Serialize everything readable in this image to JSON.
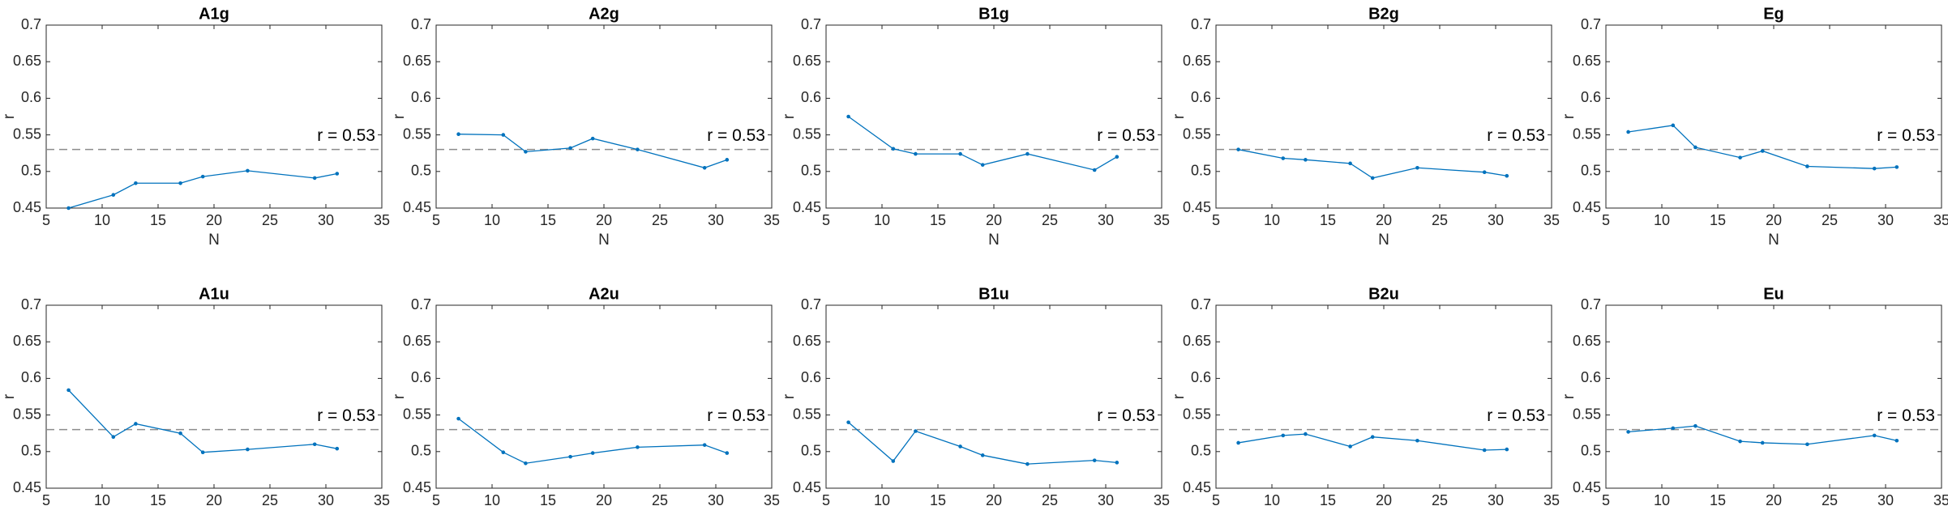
{
  "chart_data": [
    {
      "type": "line",
      "title": "A1g",
      "xlabel": "N",
      "ylabel": "r",
      "x": [
        7,
        11,
        13,
        17,
        19,
        23,
        29,
        31
      ],
      "values": [
        0.45,
        0.468,
        0.484,
        0.484,
        0.493,
        0.501,
        0.491,
        0.497
      ],
      "color": "#0072bd",
      "xlim": [
        5,
        35
      ],
      "xticks": [
        5,
        10,
        15,
        20,
        25,
        30,
        35
      ],
      "ylim": [
        0.45,
        0.7
      ],
      "yticks": [
        0.45,
        0.5,
        0.55,
        0.6,
        0.65,
        0.7
      ],
      "reference_value": 0.53,
      "annotation": "r = 0.53"
    },
    {
      "type": "line",
      "title": "A2g",
      "xlabel": "N",
      "ylabel": "r",
      "x": [
        7,
        11,
        13,
        17,
        19,
        23,
        29,
        31
      ],
      "values": [
        0.551,
        0.55,
        0.527,
        0.532,
        0.545,
        0.53,
        0.505,
        0.516
      ],
      "color": "#0072bd",
      "xlim": [
        5,
        35
      ],
      "xticks": [
        5,
        10,
        15,
        20,
        25,
        30,
        35
      ],
      "ylim": [
        0.45,
        0.7
      ],
      "yticks": [
        0.45,
        0.5,
        0.55,
        0.6,
        0.65,
        0.7
      ],
      "reference_value": 0.53,
      "annotation": "r = 0.53"
    },
    {
      "type": "line",
      "title": "B1g",
      "xlabel": "N",
      "ylabel": "r",
      "x": [
        7,
        11,
        13,
        17,
        19,
        23,
        29,
        31
      ],
      "values": [
        0.575,
        0.531,
        0.524,
        0.524,
        0.509,
        0.524,
        0.502,
        0.52
      ],
      "color": "#0072bd",
      "xlim": [
        5,
        35
      ],
      "xticks": [
        5,
        10,
        15,
        20,
        25,
        30,
        35
      ],
      "ylim": [
        0.45,
        0.7
      ],
      "yticks": [
        0.45,
        0.5,
        0.55,
        0.6,
        0.65,
        0.7
      ],
      "reference_value": 0.53,
      "annotation": "r = 0.53"
    },
    {
      "type": "line",
      "title": "B2g",
      "xlabel": "N",
      "ylabel": "r",
      "x": [
        7,
        11,
        13,
        17,
        19,
        23,
        29,
        31
      ],
      "values": [
        0.53,
        0.518,
        0.516,
        0.511,
        0.491,
        0.505,
        0.499,
        0.494
      ],
      "color": "#0072bd",
      "xlim": [
        5,
        35
      ],
      "xticks": [
        5,
        10,
        15,
        20,
        25,
        30,
        35
      ],
      "ylim": [
        0.45,
        0.7
      ],
      "yticks": [
        0.45,
        0.5,
        0.55,
        0.6,
        0.65,
        0.7
      ],
      "reference_value": 0.53,
      "annotation": "r = 0.53"
    },
    {
      "type": "line",
      "title": "Eg",
      "xlabel": "N",
      "ylabel": "r",
      "x": [
        7,
        11,
        13,
        17,
        19,
        23,
        29,
        31
      ],
      "values": [
        0.554,
        0.563,
        0.533,
        0.519,
        0.528,
        0.507,
        0.504,
        0.506
      ],
      "color": "#0072bd",
      "xlim": [
        5,
        35
      ],
      "xticks": [
        5,
        10,
        15,
        20,
        25,
        30,
        35
      ],
      "ylim": [
        0.45,
        0.7
      ],
      "yticks": [
        0.45,
        0.5,
        0.55,
        0.6,
        0.65,
        0.7
      ],
      "reference_value": 0.53,
      "annotation": "r = 0.53"
    },
    {
      "type": "line",
      "title": "A1u",
      "xlabel": "N",
      "ylabel": "r",
      "x": [
        7,
        11,
        13,
        17,
        19,
        23,
        29,
        31
      ],
      "values": [
        0.584,
        0.52,
        0.538,
        0.525,
        0.499,
        0.503,
        0.51,
        0.504
      ],
      "color": "#0072bd",
      "xlim": [
        5,
        35
      ],
      "xticks": [
        5,
        10,
        15,
        20,
        25,
        30,
        35
      ],
      "ylim": [
        0.45,
        0.7
      ],
      "yticks": [
        0.45,
        0.5,
        0.55,
        0.6,
        0.65,
        0.7
      ],
      "reference_value": 0.53,
      "annotation": "r = 0.53"
    },
    {
      "type": "line",
      "title": "A2u",
      "xlabel": "N",
      "ylabel": "r",
      "x": [
        7,
        11,
        13,
        17,
        19,
        23,
        29,
        31
      ],
      "values": [
        0.545,
        0.499,
        0.484,
        0.493,
        0.498,
        0.506,
        0.509,
        0.498
      ],
      "color": "#0072bd",
      "xlim": [
        5,
        35
      ],
      "xticks": [
        5,
        10,
        15,
        20,
        25,
        30,
        35
      ],
      "ylim": [
        0.45,
        0.7
      ],
      "yticks": [
        0.45,
        0.5,
        0.55,
        0.6,
        0.65,
        0.7
      ],
      "reference_value": 0.53,
      "annotation": "r = 0.53"
    },
    {
      "type": "line",
      "title": "B1u",
      "xlabel": "N",
      "ylabel": "r",
      "x": [
        7,
        11,
        13,
        17,
        19,
        23,
        29,
        31
      ],
      "values": [
        0.54,
        0.487,
        0.528,
        0.507,
        0.495,
        0.483,
        0.488,
        0.485
      ],
      "color": "#0072bd",
      "xlim": [
        5,
        35
      ],
      "xticks": [
        5,
        10,
        15,
        20,
        25,
        30,
        35
      ],
      "ylim": [
        0.45,
        0.7
      ],
      "yticks": [
        0.45,
        0.5,
        0.55,
        0.6,
        0.65,
        0.7
      ],
      "reference_value": 0.53,
      "annotation": "r = 0.53"
    },
    {
      "type": "line",
      "title": "B2u",
      "xlabel": "N",
      "ylabel": "r",
      "x": [
        7,
        11,
        13,
        17,
        19,
        23,
        29,
        31
      ],
      "values": [
        0.512,
        0.522,
        0.524,
        0.507,
        0.52,
        0.515,
        0.502,
        0.503
      ],
      "color": "#0072bd",
      "xlim": [
        5,
        35
      ],
      "xticks": [
        5,
        10,
        15,
        20,
        25,
        30,
        35
      ],
      "ylim": [
        0.45,
        0.7
      ],
      "yticks": [
        0.45,
        0.5,
        0.55,
        0.6,
        0.65,
        0.7
      ],
      "reference_value": 0.53,
      "annotation": "r = 0.53"
    },
    {
      "type": "line",
      "title": "Eu",
      "xlabel": "N",
      "ylabel": "r",
      "x": [
        7,
        11,
        13,
        17,
        19,
        23,
        29,
        31
      ],
      "values": [
        0.527,
        0.532,
        0.535,
        0.514,
        0.512,
        0.51,
        0.522,
        0.515
      ],
      "color": "#0072bd",
      "xlim": [
        5,
        35
      ],
      "xticks": [
        5,
        10,
        15,
        20,
        25,
        30,
        35
      ],
      "ylim": [
        0.45,
        0.7
      ],
      "yticks": [
        0.45,
        0.5,
        0.55,
        0.6,
        0.65,
        0.7
      ],
      "reference_value": 0.53,
      "annotation": "r = 0.53"
    }
  ]
}
